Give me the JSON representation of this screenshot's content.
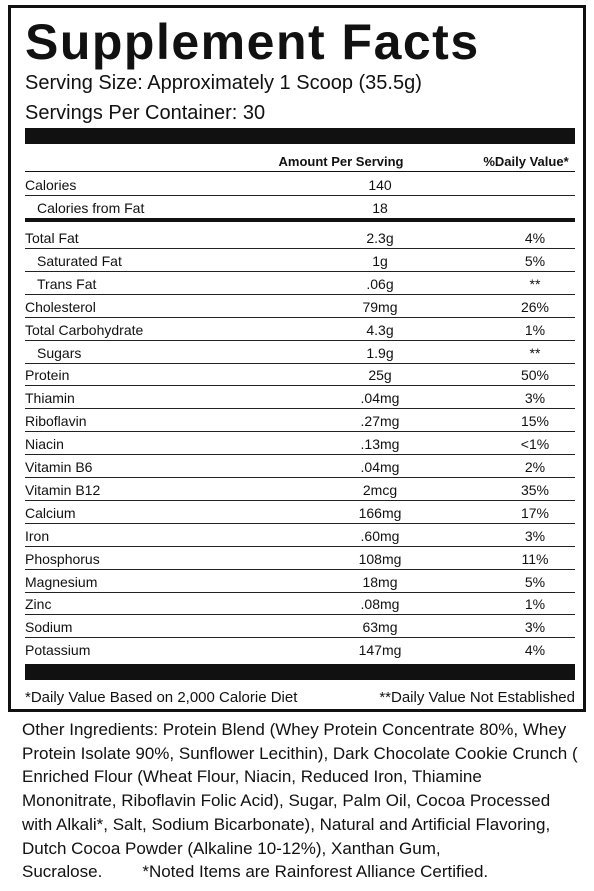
{
  "header": {
    "title": "Supplement Facts",
    "serving_size": "Serving Size: Approximately 1 Scoop (35.5g)",
    "servings_per_container": "Servings Per Container: 30"
  },
  "table": {
    "columns": [
      "Amount Per Serving",
      "%Daily Value*"
    ],
    "calorie_rows": [
      [
        "Calories",
        "140"
      ],
      [
        "Calories from Fat",
        "18"
      ]
    ],
    "rows": [
      [
        "Total Fat",
        "2.3g",
        "4%"
      ],
      [
        "Saturated Fat",
        "1g",
        "5%"
      ],
      [
        "Trans Fat",
        ".06g",
        "**"
      ],
      [
        "Cholesterol",
        "79mg",
        "26%"
      ],
      [
        "Total Carbohydrate",
        "4.3g",
        "1%"
      ],
      [
        "Sugars",
        "1.9g",
        "**"
      ],
      [
        "Protein",
        "25g",
        "50%"
      ],
      [
        "Thiamin",
        ".04mg",
        "3%"
      ],
      [
        "Riboflavin",
        ".27mg",
        "15%"
      ],
      [
        "Niacin",
        ".13mg",
        "<1%"
      ],
      [
        "Vitamin B6",
        ".04mg",
        "2%"
      ],
      [
        "Vitamin B12",
        "2mcg",
        "35%"
      ],
      [
        "Calcium",
        "166mg",
        "17%"
      ],
      [
        "Iron",
        ".60mg",
        "3%"
      ],
      [
        "Phosphorus",
        "108mg",
        "11%"
      ],
      [
        "Magnesium",
        "18mg",
        "5%"
      ],
      [
        "Zinc",
        ".08mg",
        "1%"
      ],
      [
        "Sodium",
        "63mg",
        "3%"
      ],
      [
        "Potassium",
        "147mg",
        "4%"
      ]
    ]
  },
  "footnotes": {
    "daily_value": "*Daily Value Based on 2,000 Calorie Diet",
    "not_established": "**Daily Value Not Established"
  },
  "ingredients": {
    "text": "Other Ingredients: Protein Blend (Whey Protein Concentrate 80%, Whey Protein Isolate 90%, Sunflower Lecithin), Dark Chocolate Cookie Crunch ( Enriched Flour (Wheat Flour, Niacin, Reduced Iron, Thiamine Mononitrate, Riboflavin Folic Acid), Sugar, Palm Oil, Cocoa Processed with Alkali*, Salt, Sodium Bicarbonate), Natural and Artificial Flavoring, Dutch Cocoa Powder (Alkaline 10-12%), Xanthan Gum, Sucralose.",
    "note": "*Noted Items are Rainforest Alliance Certified."
  }
}
